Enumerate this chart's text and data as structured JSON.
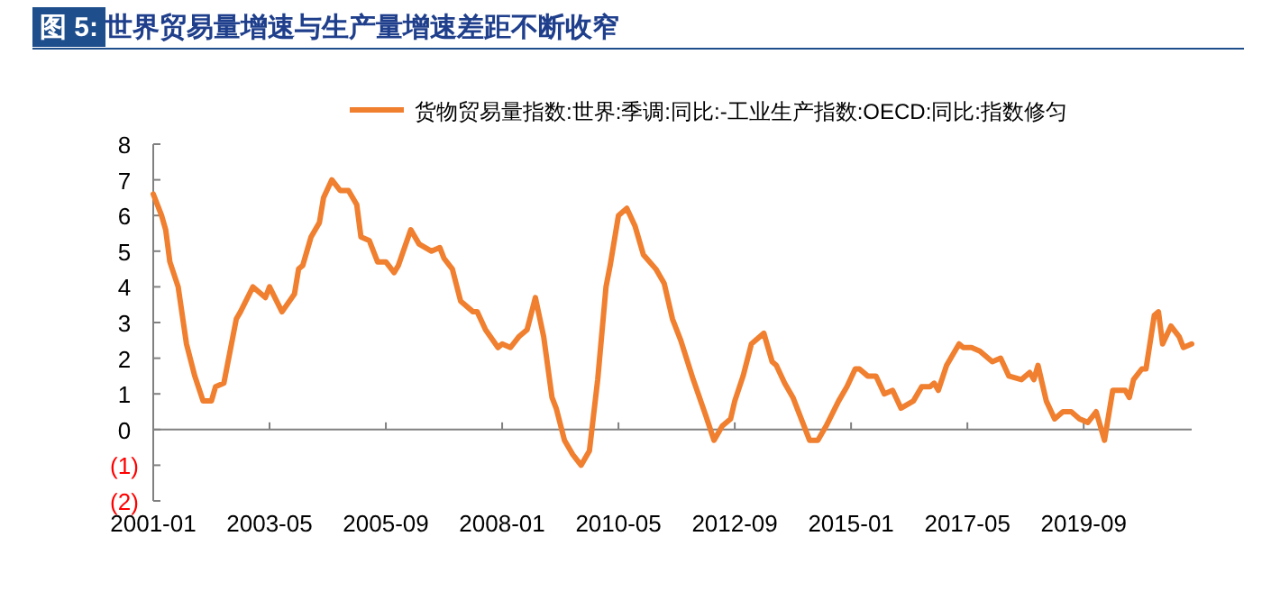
{
  "chart_data": {
    "type": "line",
    "title": "图 5: 世界贸易量增速与生产量增速差距不断收窄",
    "x": [
      "2001-01",
      "2001-03",
      "2001-04",
      "2001-05",
      "2001-07",
      "2001-09",
      "2001-11",
      "2002-01",
      "2002-03",
      "2002-04",
      "2002-06",
      "2002-07",
      "2002-09",
      "2002-10",
      "2003-01",
      "2003-04",
      "2003-05",
      "2003-08",
      "2003-11",
      "2003-12",
      "2004-01",
      "2004-03",
      "2004-05",
      "2004-06",
      "2004-08",
      "2004-10",
      "2004-12",
      "2005-02",
      "2005-03",
      "2005-05",
      "2005-07",
      "2005-09",
      "2005-11",
      "2005-12",
      "2006-03",
      "2006-05",
      "2006-08",
      "2006-10",
      "2006-11",
      "2007-01",
      "2007-03",
      "2007-06",
      "2007-07",
      "2007-09",
      "2007-12",
      "2008-01",
      "2008-03",
      "2008-05",
      "2008-07",
      "2008-09",
      "2008-11",
      "2009-01",
      "2009-02",
      "2009-04",
      "2009-06",
      "2009-08",
      "2009-10",
      "2009-12",
      "2010-02",
      "2010-03",
      "2010-05",
      "2010-07",
      "2010-09",
      "2010-11",
      "2011-02",
      "2011-04",
      "2011-06",
      "2011-08",
      "2011-11",
      "2012-02",
      "2012-04",
      "2012-06",
      "2012-08",
      "2012-09",
      "2012-11",
      "2013-01",
      "2013-04",
      "2013-06",
      "2013-07",
      "2013-09",
      "2013-11",
      "2014-01",
      "2014-03",
      "2014-05",
      "2014-07",
      "2014-10",
      "2014-12",
      "2015-02",
      "2015-03",
      "2015-05",
      "2015-07",
      "2015-09",
      "2015-11",
      "2016-01",
      "2016-04",
      "2016-06",
      "2016-08",
      "2016-09",
      "2016-10",
      "2016-12",
      "2017-03",
      "2017-04",
      "2017-06",
      "2017-08",
      "2017-11",
      "2018-01",
      "2018-03",
      "2018-06",
      "2018-08",
      "2018-09",
      "2018-10",
      "2018-12",
      "2019-02",
      "2019-04",
      "2019-06",
      "2019-08",
      "2019-10",
      "2019-12",
      "2020-02",
      "2020-04",
      "2020-07",
      "2020-08",
      "2020-09",
      "2020-11",
      "2020-12",
      "2021-02",
      "2021-03",
      "2021-04",
      "2021-06",
      "2021-08",
      "2021-09",
      "2021-11"
    ],
    "series": [
      {
        "name": "货物贸易量指数:世界:季调:同比:-工业生产指数:OECD:同比:指数修匀",
        "color": "#f07f2f",
        "values": [
          6.6,
          6.0,
          5.6,
          4.7,
          4.0,
          2.4,
          1.5,
          0.8,
          0.8,
          1.2,
          1.3,
          1.9,
          3.1,
          3.3,
          4.0,
          3.7,
          4.0,
          3.3,
          3.8,
          4.5,
          4.6,
          5.4,
          5.8,
          6.5,
          7.0,
          6.7,
          6.7,
          6.3,
          5.4,
          5.3,
          4.7,
          4.7,
          4.4,
          4.6,
          5.6,
          5.2,
          5.0,
          5.1,
          4.8,
          4.5,
          3.6,
          3.3,
          3.3,
          2.8,
          2.3,
          2.4,
          2.3,
          2.6,
          2.8,
          3.7,
          2.6,
          0.9,
          0.6,
          -0.3,
          -0.7,
          -1.0,
          -0.6,
          1.4,
          4.0,
          4.6,
          6.0,
          6.2,
          5.7,
          4.9,
          4.5,
          4.1,
          3.1,
          2.5,
          1.4,
          0.4,
          -0.3,
          0.1,
          0.3,
          0.8,
          1.5,
          2.4,
          2.7,
          1.9,
          1.8,
          1.3,
          0.9,
          0.3,
          -0.3,
          -0.3,
          0.1,
          0.8,
          1.2,
          1.7,
          1.7,
          1.5,
          1.5,
          1.0,
          1.1,
          0.6,
          0.8,
          1.2,
          1.2,
          1.3,
          1.1,
          1.8,
          2.4,
          2.3,
          2.3,
          2.2,
          1.9,
          2.0,
          1.5,
          1.4,
          1.6,
          1.4,
          1.8,
          0.8,
          0.3,
          0.5,
          0.5,
          0.3,
          0.2,
          0.5,
          -0.3,
          1.1,
          1.1,
          0.9,
          1.4,
          1.7,
          1.7,
          3.2,
          3.3,
          2.4,
          2.9,
          2.6,
          2.3,
          2.4
        ]
      }
    ],
    "xlim": [
      "2001-01",
      "2021-11"
    ],
    "xticks": [
      "2001-01",
      "2003-05",
      "2005-09",
      "2008-01",
      "2010-05",
      "2012-09",
      "2015-01",
      "2017-05",
      "2019-09"
    ],
    "ylim": [
      -2,
      8
    ],
    "yticks": [
      {
        "value": -2,
        "label": "(2)"
      },
      {
        "value": -1,
        "label": "(1)"
      },
      0,
      1,
      2,
      3,
      4,
      5,
      6,
      7,
      8
    ],
    "legend": "top",
    "marker": "none",
    "line_style": "solid"
  }
}
